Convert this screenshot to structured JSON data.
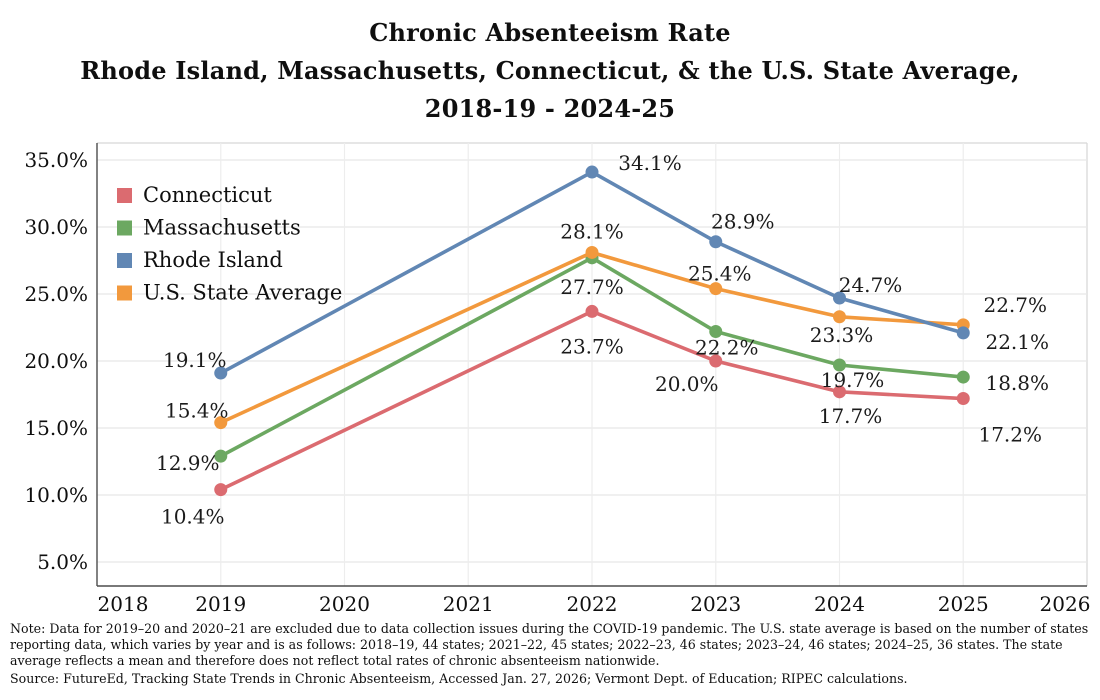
{
  "title": {
    "line1": "Chronic Absenteeism Rate",
    "line2": "Rhode Island, Massachusetts, Connecticut, & the U.S. State Average,",
    "line3": "2018-19 - 2024-25"
  },
  "chart_data": {
    "type": "line",
    "x": [
      2019,
      2022,
      2023,
      2024,
      2025
    ],
    "x_ticks": [
      2018,
      2019,
      2020,
      2021,
      2022,
      2023,
      2024,
      2025,
      2026
    ],
    "xlim": [
      2018,
      2026
    ],
    "y_ticks": [
      {
        "value": 35,
        "label": "35.0%"
      },
      {
        "value": 30,
        "label": "30.0%"
      },
      {
        "value": 25,
        "label": "25.0%"
      },
      {
        "value": 20,
        "label": "20.0%"
      },
      {
        "value": 15,
        "label": "15.0%"
      },
      {
        "value": 10,
        "label": "10.0%"
      },
      {
        "value": 5,
        "label": "5.0%"
      }
    ],
    "grid": true,
    "legend_position": "top-left",
    "legend_order": [
      "Connecticut",
      "Massachusetts",
      "Rhode Island",
      "U.S. State Average"
    ],
    "series": [
      {
        "name": "Connecticut",
        "color": "#db6b70",
        "values": [
          10.4,
          23.7,
          20.0,
          17.7,
          17.2
        ],
        "point_labels": [
          "10.4%",
          "23.7%",
          "20.0%",
          "17.7%",
          "17.2%"
        ],
        "label_offsets": [
          [
            -28,
            28
          ],
          [
            0,
            36
          ],
          [
            -29,
            24
          ],
          [
            11,
            25
          ],
          [
            47,
            37
          ]
        ]
      },
      {
        "name": "Massachusetts",
        "color": "#6ca861",
        "values": [
          12.9,
          27.7,
          22.2,
          19.7,
          18.8
        ],
        "point_labels": [
          "12.9%",
          "27.7%",
          "22.2%",
          "19.7%",
          "18.8%"
        ],
        "label_offsets": [
          [
            -33,
            8
          ],
          [
            0,
            30
          ],
          [
            11,
            17
          ],
          [
            13,
            16
          ],
          [
            54,
            7
          ]
        ]
      },
      {
        "name": "U.S. State Average",
        "color": "#f2993d",
        "values": [
          15.4,
          28.1,
          25.4,
          23.3,
          22.7
        ],
        "point_labels": [
          "15.4%",
          "28.1%",
          "25.4%",
          "23.3%",
          "22.7%"
        ],
        "label_offsets": [
          [
            -24,
            -11
          ],
          [
            0,
            -20
          ],
          [
            4,
            -14
          ],
          [
            2,
            19
          ],
          [
            52,
            -19
          ]
        ]
      },
      {
        "name": "Rhode Island",
        "color": "#6187b4",
        "values": [
          19.1,
          34.1,
          28.9,
          24.7,
          22.1
        ],
        "point_labels": [
          "19.1%",
          "34.1%",
          "28.9%",
          "24.7%",
          "22.1%"
        ],
        "label_offsets": [
          [
            -26,
            -12
          ],
          [
            58,
            -8
          ],
          [
            27,
            -19
          ],
          [
            31,
            -12
          ],
          [
            54,
            10
          ]
        ]
      }
    ]
  },
  "footer": {
    "note": "Note: Data for 2019–20 and 2020–21 are excluded due to data collection issues during the COVID-19 pandemic. The U.S. state average is based on the number of states reporting data, which varies by year and is as follows: 2018–19, 44 states; 2021–22, 45 states; 2022–23, 46 states; 2023–24, 46 states; 2024–25, 36 states. The state average reflects a mean  and therefore does not reflect total rates of chronic absenteeism nationwide.",
    "source": "Source: FutureEd, Tracking State Trends in Chronic Absenteeism, Accessed Jan. 27, 2026; Vermont Dept. of Education; RIPEC calculations."
  }
}
